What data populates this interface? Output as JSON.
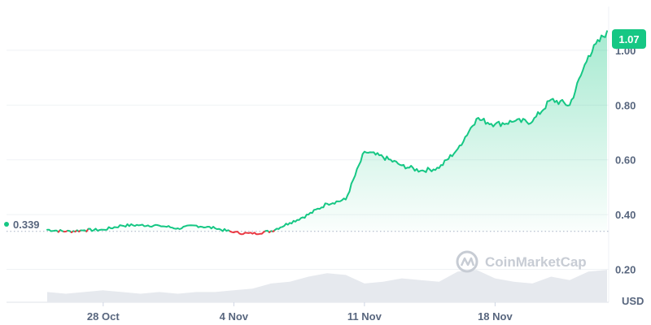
{
  "chart_data": {
    "type": "line",
    "currency": "USD",
    "watermark": "CoinMarketCap",
    "x_ticks": [
      "28 Oct",
      "4 Nov",
      "11 Nov",
      "18 Nov"
    ],
    "y_ticks": [
      0.2,
      0.4,
      0.6,
      0.8,
      1.0
    ],
    "y_tick_labels": [
      "0.20",
      "0.40",
      "0.60",
      "0.80",
      "1.00"
    ],
    "ylim": [
      0.08,
      1.16
    ],
    "baseline": {
      "value": 0.339,
      "label": "0.339"
    },
    "last_price": {
      "value": 1.07,
      "label": "1.07"
    },
    "colors": {
      "up": "#16c784",
      "down": "#ea3943",
      "axis_text": "#58667e",
      "grid": "#eff2f5",
      "volume": "#e6e9ee"
    },
    "series": [
      {
        "x": [
          "2024-10-25",
          "2024-10-26",
          "2024-10-27",
          "2024-10-28",
          "2024-10-29",
          "2024-10-30",
          "2024-10-31",
          "2024-11-01",
          "2024-11-02",
          "2024-11-03",
          "2024-11-04",
          "2024-11-05",
          "2024-11-06",
          "2024-11-07",
          "2024-11-08",
          "2024-11-09",
          "2024-11-10",
          "2024-11-11",
          "2024-11-12",
          "2024-11-13",
          "2024-11-14",
          "2024-11-15",
          "2024-11-16",
          "2024-11-17",
          "2024-11-18",
          "2024-11-19",
          "2024-11-20",
          "2024-11-21",
          "2024-11-22",
          "2024-11-23",
          "2024-11-24"
        ],
        "values": [
          0.345,
          0.338,
          0.343,
          0.345,
          0.36,
          0.362,
          0.36,
          0.35,
          0.36,
          0.35,
          0.335,
          0.33,
          0.34,
          0.37,
          0.4,
          0.44,
          0.455,
          0.63,
          0.61,
          0.58,
          0.56,
          0.57,
          0.64,
          0.75,
          0.73,
          0.74,
          0.74,
          0.82,
          0.8,
          0.98,
          1.07
        ]
      }
    ],
    "volume": [
      0.3,
      0.25,
      0.3,
      0.35,
      0.3,
      0.25,
      0.3,
      0.25,
      0.3,
      0.3,
      0.35,
      0.4,
      0.55,
      0.6,
      0.75,
      0.85,
      0.8,
      0.55,
      0.6,
      0.7,
      0.65,
      0.6,
      0.9,
      0.95,
      0.7,
      0.6,
      0.55,
      0.75,
      0.65,
      0.9,
      0.95
    ]
  }
}
